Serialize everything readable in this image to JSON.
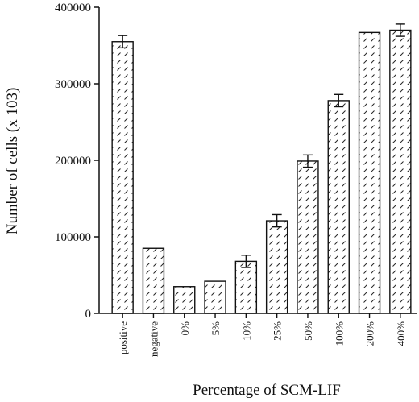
{
  "chart_data": {
    "type": "bar",
    "xlabel": "Percentage of SCM-LIF",
    "ylabel": "Number of cells (x 103)",
    "ylim": [
      0,
      400000
    ],
    "yticks": [
      0,
      100000,
      200000,
      300000,
      400000
    ],
    "ytick_labels": [
      "0",
      "100000",
      "200000",
      "300000",
      "400000"
    ],
    "grid": false,
    "categories": [
      "positive",
      "negative",
      "0%",
      "5%",
      "10%",
      "25%",
      "50%",
      "100%",
      "200%",
      "400%"
    ],
    "values": [
      355000,
      85000,
      35000,
      42000,
      68000,
      121000,
      199000,
      278000,
      367000,
      370000
    ],
    "error": [
      8000,
      0,
      0,
      0,
      8000,
      8000,
      8000,
      8000,
      0,
      8000
    ]
  }
}
